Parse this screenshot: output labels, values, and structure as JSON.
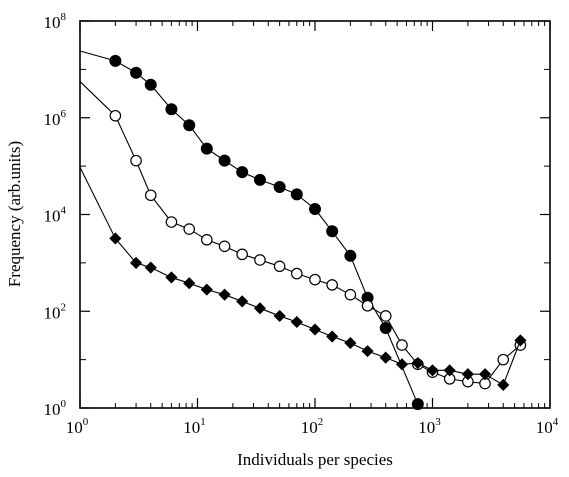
{
  "chart_data": {
    "type": "line",
    "title": "",
    "xlabel": "Individuals per species",
    "ylabel": "Frequency (arb.units)",
    "xscale": "log",
    "yscale": "log",
    "xlim": [
      1,
      10000
    ],
    "ylim": [
      1,
      100000000
    ],
    "grid": false,
    "legend": "none",
    "x_ticks": [
      {
        "base": "10",
        "exp": "0",
        "value": 1
      },
      {
        "base": "10",
        "exp": "1",
        "value": 10
      },
      {
        "base": "10",
        "exp": "2",
        "value": 100
      },
      {
        "base": "10",
        "exp": "3",
        "value": 1000
      },
      {
        "base": "10",
        "exp": "4",
        "value": 10000
      }
    ],
    "y_ticks": [
      {
        "base": "10",
        "exp": "0",
        "value": 1
      },
      {
        "base": "10",
        "exp": "2",
        "value": 100
      },
      {
        "base": "10",
        "exp": "4",
        "value": 10000
      },
      {
        "base": "10",
        "exp": "6",
        "value": 1000000
      },
      {
        "base": "10",
        "exp": "8",
        "value": 100000000
      }
    ],
    "series": [
      {
        "marker": "filled-circle",
        "color": "#000000",
        "line_start": [
          1,
          24000000
        ],
        "points": [
          [
            2,
            15000000
          ],
          [
            3,
            8500000
          ],
          [
            4,
            4800000
          ],
          [
            6,
            1500000
          ],
          [
            8.5,
            700000
          ],
          [
            12,
            230000
          ],
          [
            17,
            130000
          ],
          [
            24,
            75000
          ],
          [
            34,
            52000
          ],
          [
            50,
            37000
          ],
          [
            70,
            26000
          ],
          [
            100,
            13000
          ],
          [
            140,
            4500
          ],
          [
            200,
            1400
          ],
          [
            280,
            190
          ],
          [
            400,
            45
          ],
          [
            750,
            1.2
          ]
        ]
      },
      {
        "marker": "open-circle",
        "color": "#000000",
        "line_start": [
          1,
          5600000
        ],
        "points": [
          [
            2,
            1100000
          ],
          [
            3,
            130000
          ],
          [
            4,
            25000
          ],
          [
            6,
            7000
          ],
          [
            8.5,
            5000
          ],
          [
            12,
            3000
          ],
          [
            17,
            2200
          ],
          [
            24,
            1500
          ],
          [
            34,
            1150
          ],
          [
            50,
            850
          ],
          [
            70,
            600
          ],
          [
            100,
            450
          ],
          [
            140,
            350
          ],
          [
            200,
            220
          ],
          [
            280,
            130
          ],
          [
            400,
            80
          ],
          [
            550,
            20
          ],
          [
            750,
            8
          ],
          [
            1000,
            5.5
          ],
          [
            1400,
            4
          ],
          [
            2000,
            3.5
          ],
          [
            2800,
            3.2
          ],
          [
            4000,
            10
          ],
          [
            5600,
            20
          ]
        ]
      },
      {
        "marker": "filled-diamond",
        "color": "#000000",
        "line_start": [
          1,
          95000
        ],
        "points": [
          [
            2,
            3200
          ],
          [
            3,
            1000
          ],
          [
            4,
            800
          ],
          [
            6,
            500
          ],
          [
            8.5,
            380
          ],
          [
            12,
            280
          ],
          [
            17,
            220
          ],
          [
            24,
            160
          ],
          [
            34,
            115
          ],
          [
            50,
            80
          ],
          [
            70,
            60
          ],
          [
            100,
            42
          ],
          [
            140,
            30
          ],
          [
            200,
            22
          ],
          [
            280,
            15
          ],
          [
            400,
            11
          ],
          [
            550,
            8
          ],
          [
            750,
            8.5
          ],
          [
            1000,
            6
          ],
          [
            1400,
            6
          ],
          [
            2000,
            5
          ],
          [
            2800,
            5
          ],
          [
            4000,
            3
          ],
          [
            5600,
            25
          ]
        ]
      }
    ]
  }
}
